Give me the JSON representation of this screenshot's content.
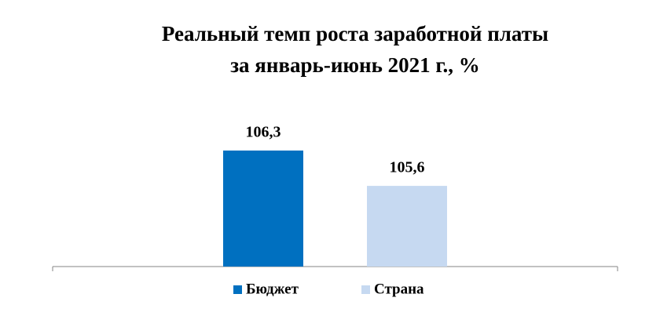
{
  "chart_data": {
    "type": "bar",
    "title": [
      "Реальный темп роста заработной платы",
      "за январь-июнь 2021 г., %"
    ],
    "categories": [
      null
    ],
    "series": [
      {
        "name": "Бюджет",
        "color": "#0070c0",
        "values": [
          106.3
        ],
        "value_labels": [
          "106,3"
        ]
      },
      {
        "name": "Страна",
        "color": "#c6d9f1",
        "values": [
          105.6
        ],
        "value_labels": [
          "105,6"
        ]
      }
    ],
    "ylim": [
      104,
      107
    ],
    "legend": "bottom"
  }
}
